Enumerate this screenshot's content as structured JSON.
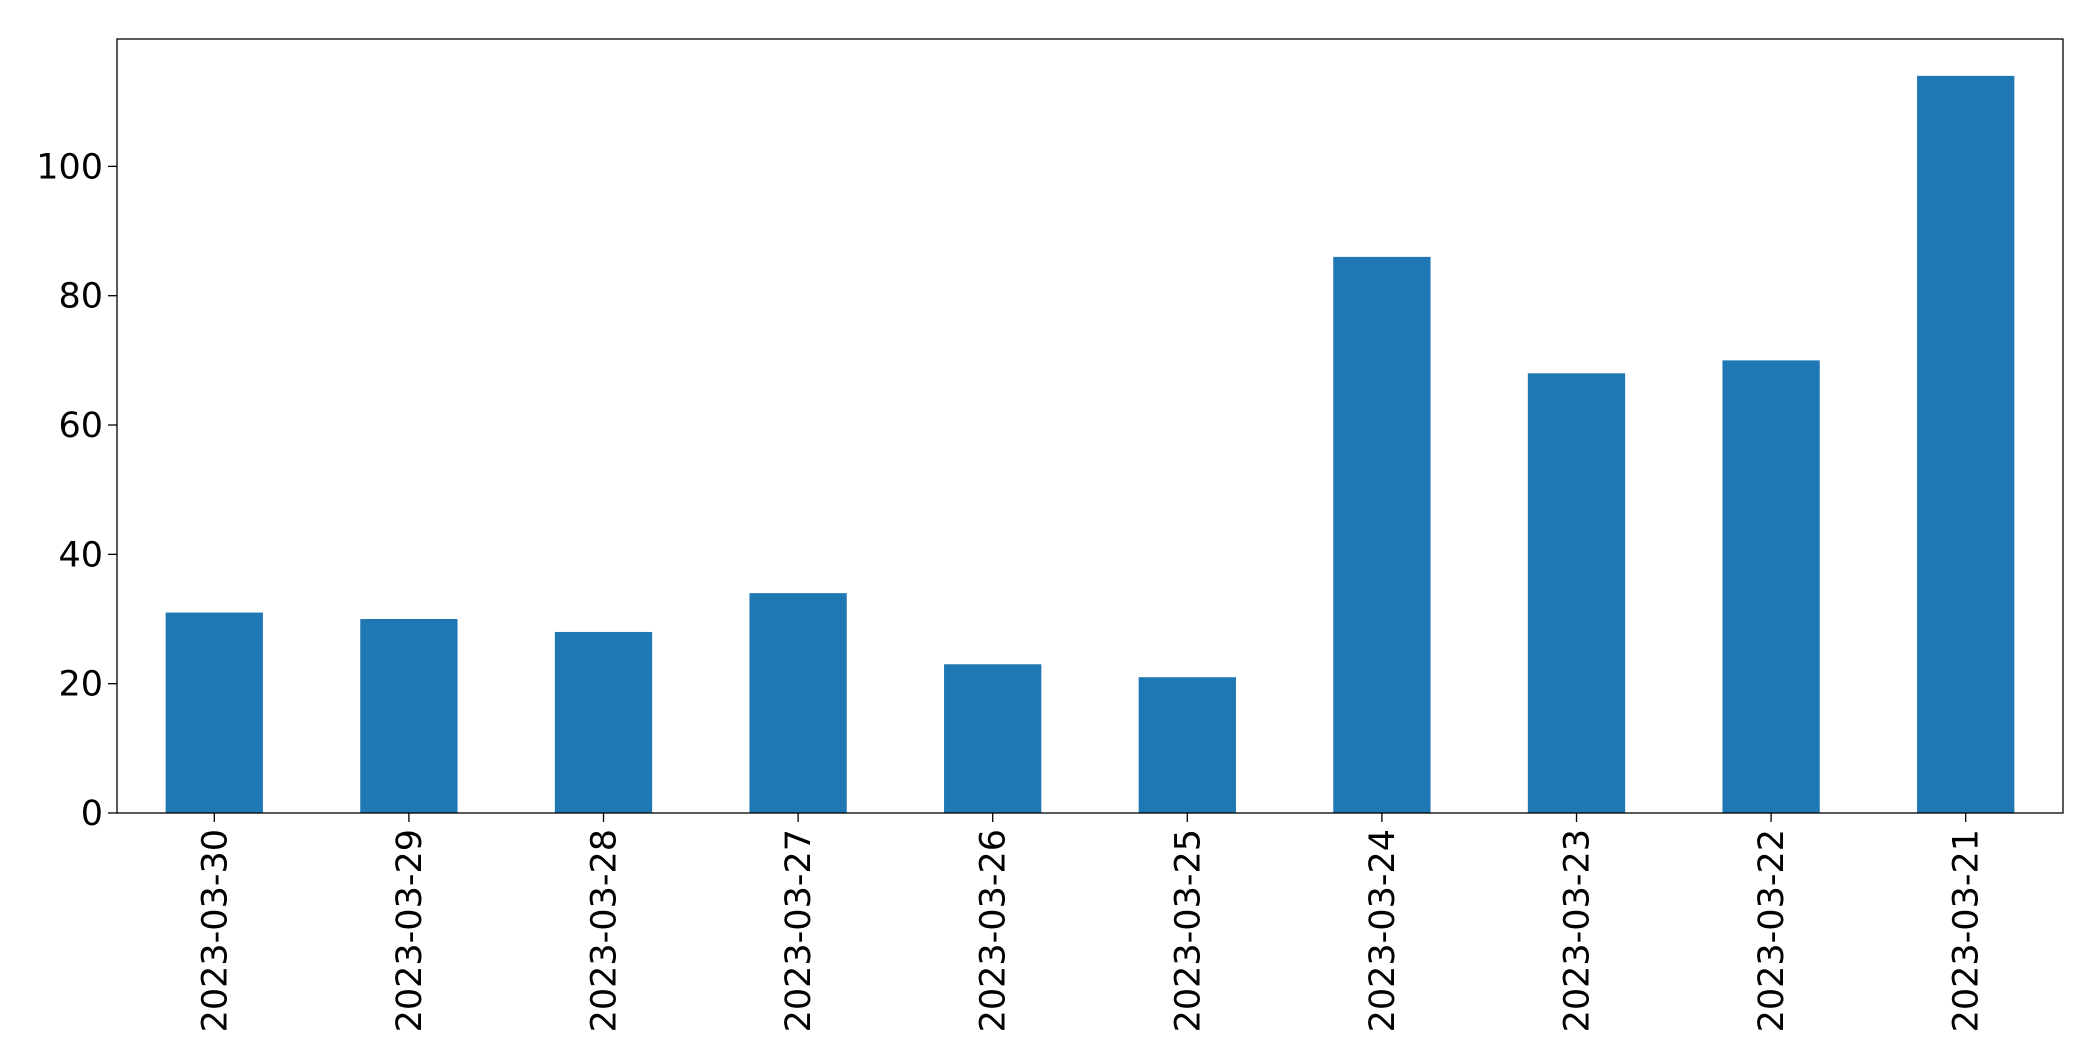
{
  "chart_data": {
    "type": "bar",
    "categories": [
      "2023-03-30",
      "2023-03-29",
      "2023-03-28",
      "2023-03-27",
      "2023-03-26",
      "2023-03-25",
      "2023-03-24",
      "2023-03-23",
      "2023-03-22",
      "2023-03-21"
    ],
    "values": [
      31,
      30,
      28,
      34,
      23,
      21,
      86,
      68,
      70,
      114
    ],
    "color": "#1f77b4",
    "ylim": [
      0,
      119.7
    ],
    "yticks": [
      0,
      20,
      40,
      60,
      80,
      100
    ],
    "grid": false
  }
}
